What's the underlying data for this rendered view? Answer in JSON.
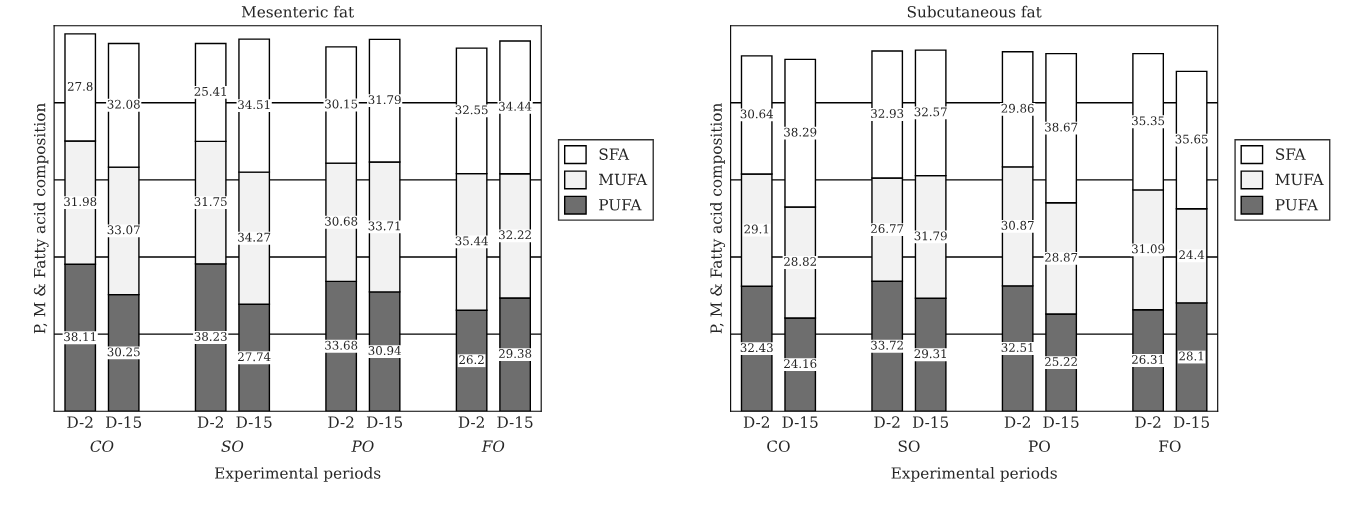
{
  "chart_data": [
    {
      "type": "bar",
      "stacked": true,
      "title": "Mesenteric fat",
      "xlabel": "Experimental periods",
      "ylabel": "P, M & Fatty acid composition",
      "categories": [
        "D-2",
        "D-15",
        "D-2",
        "D-15",
        "D-2",
        "D-15",
        "D-2",
        "D-15"
      ],
      "annotations": [
        "CO",
        "SO",
        "PO",
        "FO"
      ],
      "series": [
        {
          "name": "PUFA",
          "color": "#6e6e6e",
          "values": [
            38.11,
            30.25,
            38.23,
            27.74,
            33.68,
            30.94,
            26.2,
            29.38
          ]
        },
        {
          "name": "MUFA",
          "color": "#f2f2f2",
          "values": [
            31.98,
            33.07,
            31.75,
            34.27,
            30.68,
            33.71,
            35.44,
            32.22
          ]
        },
        {
          "name": "SFA",
          "color": "#ffffff",
          "values": [
            27.8,
            32.08,
            25.41,
            34.51,
            30.15,
            31.79,
            32.55,
            34.44
          ]
        }
      ],
      "ylim": [
        0,
        100
      ],
      "yticks": [
        {
          "value": 20,
          "label": null
        },
        {
          "value": 40,
          "label": null
        },
        {
          "value": 60,
          "label": null
        },
        {
          "value": 80,
          "label": null
        }
      ],
      "tick_labels": "x",
      "grid": "y",
      "data_labels": true,
      "legend": "right"
    },
    {
      "type": "bar",
      "stacked": true,
      "title": "Subcutaneous fat",
      "xlabel": "Experimental periods",
      "ylabel": "P, M & Fatty acid composition",
      "categories": [
        "D-2",
        "D-15",
        "D-2",
        "D-15",
        "D-2",
        "D-15",
        "D-2",
        "D-15"
      ],
      "annotations": [
        "CO",
        "SO",
        "PO",
        "FO"
      ],
      "series": [
        {
          "name": "PUFA",
          "color": "#6e6e6e",
          "values": [
            32.43,
            24.16,
            33.72,
            29.31,
            32.51,
            25.22,
            26.31,
            28.1
          ]
        },
        {
          "name": "MUFA",
          "color": "#f2f2f2",
          "values": [
            29.1,
            28.82,
            26.77,
            31.79,
            30.87,
            28.87,
            31.09,
            24.4
          ]
        },
        {
          "name": "SFA",
          "color": "#ffffff",
          "values": [
            30.64,
            38.29,
            32.93,
            32.57,
            29.86,
            38.67,
            35.35,
            35.65
          ]
        }
      ],
      "ylim": [
        0,
        100
      ],
      "yticks": [
        {
          "value": 20,
          "label": null
        },
        {
          "value": 40,
          "label": null
        },
        {
          "value": 60,
          "label": null
        },
        {
          "value": 80,
          "label": null
        }
      ],
      "tick_labels": "x",
      "grid": "y",
      "data_labels": true,
      "legend": "right"
    }
  ]
}
